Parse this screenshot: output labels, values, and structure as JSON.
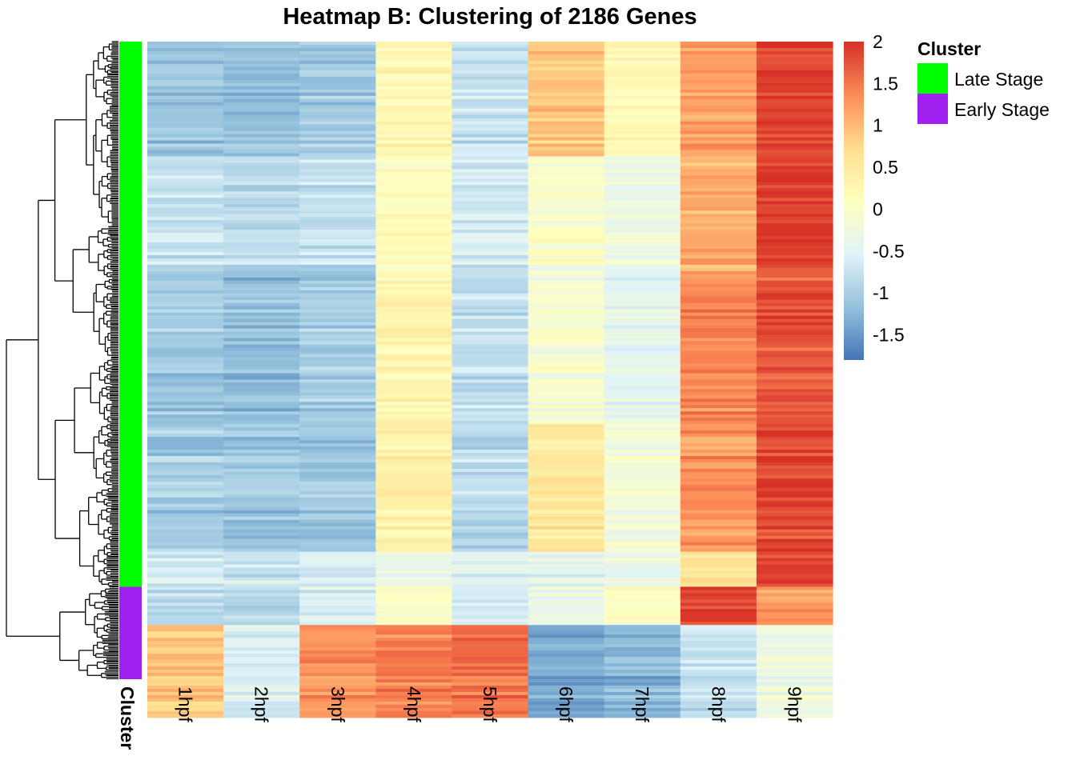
{
  "chart_data": {
    "type": "heatmap",
    "title": "Heatmap B: Clustering of 2186 Genes",
    "columns": [
      "1hpf",
      "2hpf",
      "3hpf",
      "4hpf",
      "5hpf",
      "6hpf",
      "7hpf",
      "8hpf",
      "9hpf"
    ],
    "row_count": 2186,
    "annotation": {
      "label": "Cluster",
      "legend_title": "Cluster",
      "categories": [
        {
          "name": "Late Stage",
          "color": "#00FF00",
          "row_fraction": 0.855
        },
        {
          "name": "Early Stage",
          "color": "#A020F0",
          "row_fraction": 0.145
        }
      ]
    },
    "color_scale": {
      "min": -1.8,
      "max": 2.0,
      "ticks": [
        "2",
        "1.5",
        "1",
        "0.5",
        "0",
        "-0.5",
        "-1",
        "-1.5"
      ],
      "tick_values": [
        2,
        1.5,
        1,
        0.5,
        0,
        -0.5,
        -1,
        -1.5
      ],
      "colors": [
        "#4575B4",
        "#91BFDB",
        "#E0F3F8",
        "#FFFFBF",
        "#FEE090",
        "#FC8D59",
        "#D73027"
      ]
    },
    "row_blocks": [
      {
        "cluster": "Late Stage",
        "fraction": 0.18,
        "values": [
          -1.1,
          -1.15,
          -1.05,
          0.25,
          -0.75,
          0.9,
          0.2,
          1.2,
          1.85
        ]
      },
      {
        "cluster": "Late Stage",
        "fraction": 0.18,
        "values": [
          -0.75,
          -0.85,
          -0.75,
          0.1,
          -0.65,
          -0.05,
          -0.3,
          1.1,
          1.9
        ]
      },
      {
        "cluster": "Late Stage",
        "fraction": 0.24,
        "values": [
          -1.05,
          -1.15,
          -1.0,
          0.3,
          -0.8,
          -0.1,
          -0.45,
          1.4,
          1.75
        ]
      },
      {
        "cluster": "Late Stage",
        "fraction": 0.2,
        "values": [
          -1.0,
          -1.1,
          -1.05,
          0.35,
          -0.85,
          0.55,
          -0.2,
          1.3,
          1.85
        ]
      },
      {
        "cluster": "Late Stage",
        "fraction": 0.055,
        "values": [
          -0.65,
          -0.7,
          -0.6,
          -0.35,
          -0.55,
          -0.45,
          -0.35,
          0.6,
          1.9
        ]
      },
      {
        "cluster": "Late Stage",
        "fraction": 0.06,
        "values": [
          -0.8,
          -0.85,
          -0.55,
          0.05,
          -0.6,
          -0.3,
          0.05,
          1.9,
          1.3
        ]
      },
      {
        "cluster": "Early Stage",
        "fraction": 0.145,
        "values": [
          0.9,
          -0.55,
          1.3,
          1.45,
          1.55,
          -1.35,
          -1.25,
          -0.75,
          -0.3
        ]
      }
    ]
  }
}
